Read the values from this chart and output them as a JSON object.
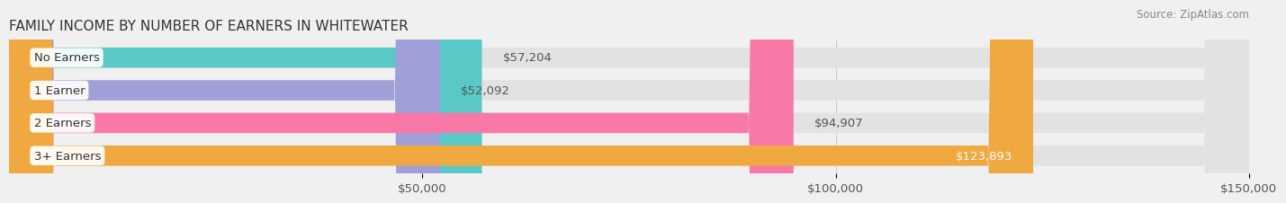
{
  "title": "FAMILY INCOME BY NUMBER OF EARNERS IN WHITEWATER",
  "source": "Source: ZipAtlas.com",
  "categories": [
    "No Earners",
    "1 Earner",
    "2 Earners",
    "3+ Earners"
  ],
  "values": [
    57204,
    52092,
    94907,
    123893
  ],
  "bar_colors": [
    "#5bc8c8",
    "#a0a0d8",
    "#f878a8",
    "#f0a840"
  ],
  "bar_labels": [
    "$57,204",
    "$52,092",
    "$94,907",
    "$123,893"
  ],
  "label_inside": [
    false,
    false,
    false,
    true
  ],
  "xlim": [
    0,
    150000
  ],
  "xticks": [
    50000,
    100000,
    150000
  ],
  "xtick_labels": [
    "$50,000",
    "$100,000",
    "$150,000"
  ],
  "background_color": "#f0f0f0",
  "bar_bg_color": "#e2e2e2",
  "title_fontsize": 11,
  "tick_fontsize": 9.5,
  "bar_height": 0.62,
  "figsize": [
    14.06,
    2.33
  ]
}
